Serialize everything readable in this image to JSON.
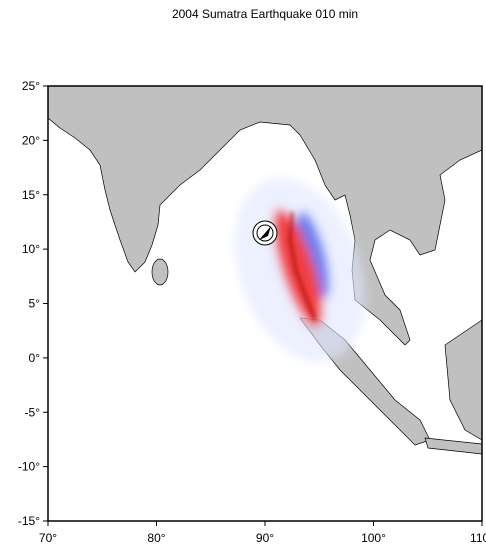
{
  "title": "2004 Sumatra Earthquake  010 min",
  "map": {
    "xlim": [
      70,
      110
    ],
    "ylim": [
      -15,
      25
    ],
    "xticks": [
      {
        "value": 70,
        "label": "70°"
      },
      {
        "value": 80,
        "label": "80°"
      },
      {
        "value": 90,
        "label": "90°"
      },
      {
        "value": 100,
        "label": "100°"
      },
      {
        "value": 110,
        "label": "110°"
      }
    ],
    "yticks": [
      {
        "value": -15,
        "label": "-15°"
      },
      {
        "value": -10,
        "label": "-10°"
      },
      {
        "value": -5,
        "label": "-5°"
      },
      {
        "value": 0,
        "label": "0°"
      },
      {
        "value": 5,
        "label": "5°"
      },
      {
        "value": 10,
        "label": "10°"
      },
      {
        "value": 15,
        "label": "15°"
      },
      {
        "value": 20,
        "label": "20°"
      },
      {
        "value": 25,
        "label": "25°"
      }
    ]
  }
}
